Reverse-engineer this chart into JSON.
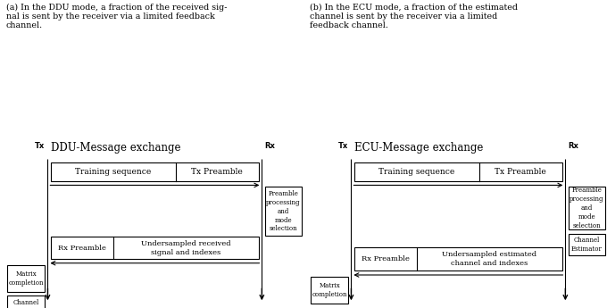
{
  "fig_width": 6.8,
  "fig_height": 3.45,
  "dpi": 100,
  "caption_a": "(a) In the DDU mode, a fraction of the received sig-\nnal is sent by the receiver via a limited feedback\nchannel.",
  "caption_b": "(b) In the ECU mode, a fraction of the estimated\nchannel is sent by the receiver via a limited\nfeedback channel.",
  "ddu_title": "DDU-Message exchange",
  "ecu_title": "ECU-Message exchange",
  "tx_label": "Tx",
  "rx_label": "Rx",
  "bg_color": "#ffffff"
}
